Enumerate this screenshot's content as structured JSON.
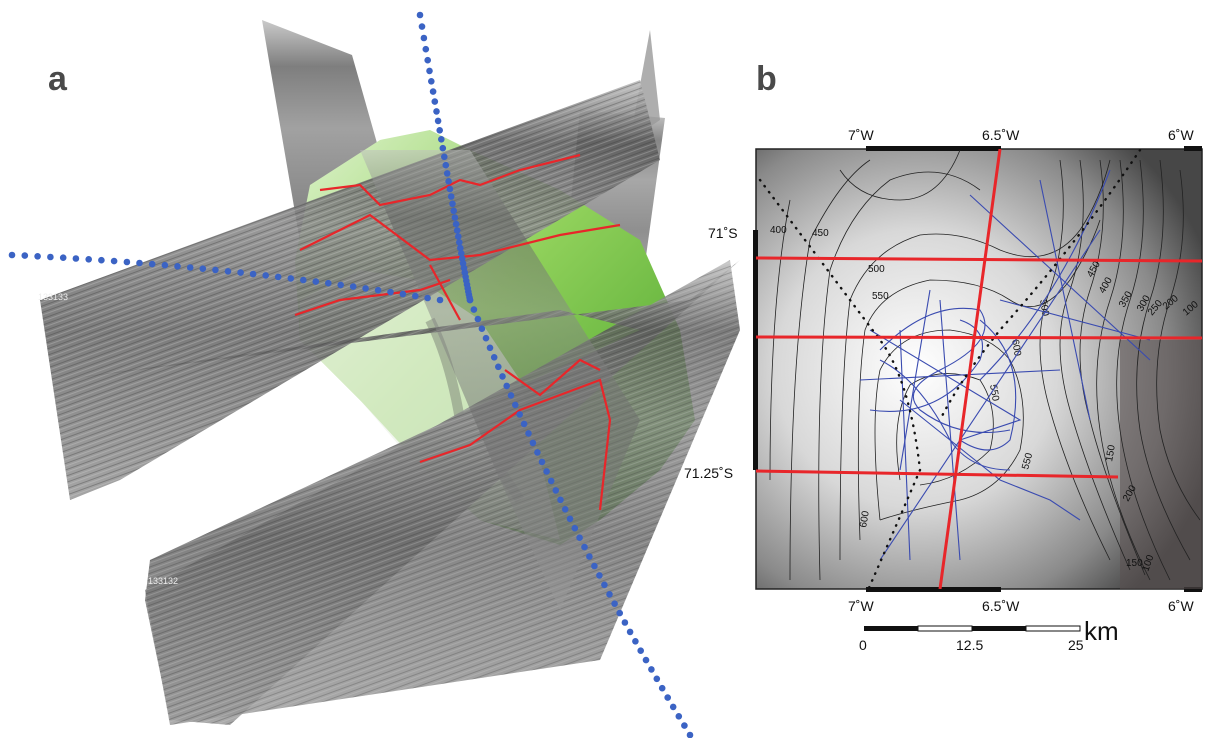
{
  "panel_a": {
    "label": "a",
    "profile_labels": [
      "133133",
      "133132"
    ],
    "colors": {
      "nav_dots": "#3b63c4",
      "seabed_red": "#e8262a",
      "bathy_green": "#6fbf3a"
    }
  },
  "panel_b": {
    "label": "b",
    "top_ticks": [
      "7˚W",
      "6.5˚W",
      "6˚W"
    ],
    "bottom_ticks": [
      "7˚W",
      "6.5˚W",
      "6˚W"
    ],
    "left_ticks": [
      "71˚S",
      "71.25˚S"
    ],
    "contours": [
      "400",
      "450",
      "500",
      "550",
      "600",
      "550",
      "500",
      "450",
      "400",
      "350",
      "300",
      "250",
      "200",
      "100",
      "150",
      "600",
      "550",
      "150",
      "100",
      "200"
    ],
    "scale_bar": {
      "ticks": [
        "0",
        "12.5",
        "25"
      ],
      "unit": "km"
    },
    "colors": {
      "seismic_lines": "#e8262a",
      "ship_tracks": "#3a4bb0",
      "dotted_track": "#111111"
    }
  }
}
